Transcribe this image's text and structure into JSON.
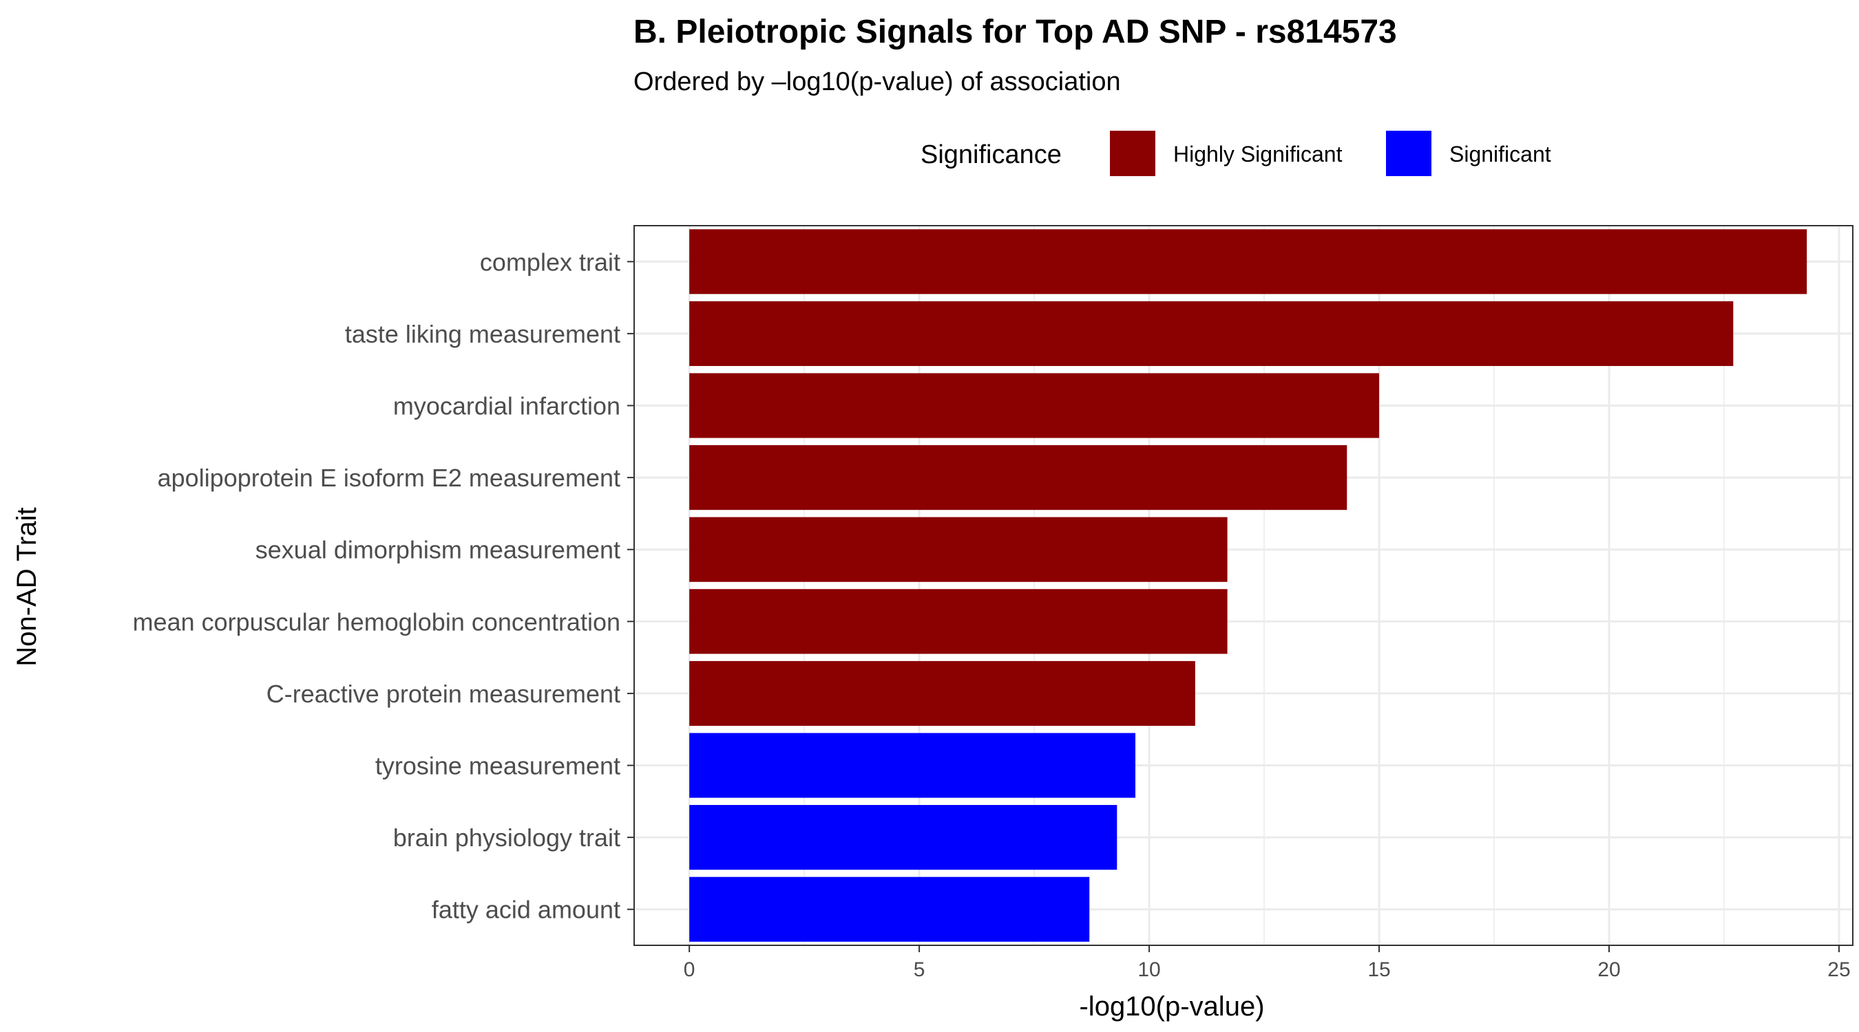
{
  "chart_data": {
    "type": "bar",
    "orientation": "horizontal",
    "title": "B. Pleiotropic Signals for Top AD SNP - rs814573",
    "subtitle": "Ordered by –log10(p-value) of association",
    "xlabel": "-log10(p-value)",
    "ylabel": "Non-AD Trait",
    "xlim": [
      -1.2,
      25.3
    ],
    "xticks": [
      0,
      5,
      10,
      15,
      20,
      25
    ],
    "grid": true,
    "legend": {
      "title": "Significance",
      "position": "top",
      "entries": [
        {
          "label": "Highly Significant",
          "color": "#8B0000"
        },
        {
          "label": "Significant",
          "color": "#0000FF"
        }
      ]
    },
    "categories": [
      "complex trait",
      "taste liking measurement",
      "myocardial infarction",
      "apolipoprotein E isoform E2 measurement",
      "sexual dimorphism measurement",
      "mean corpuscular hemoglobin concentration",
      "C-reactive protein measurement",
      "tyrosine measurement",
      "brain physiology trait",
      "fatty acid amount"
    ],
    "values": [
      24.3,
      22.7,
      15.0,
      14.3,
      11.7,
      11.7,
      11.0,
      9.7,
      9.3,
      8.7
    ],
    "significance": [
      "Highly Significant",
      "Highly Significant",
      "Highly Significant",
      "Highly Significant",
      "Highly Significant",
      "Highly Significant",
      "Highly Significant",
      "Significant",
      "Significant",
      "Significant"
    ]
  }
}
